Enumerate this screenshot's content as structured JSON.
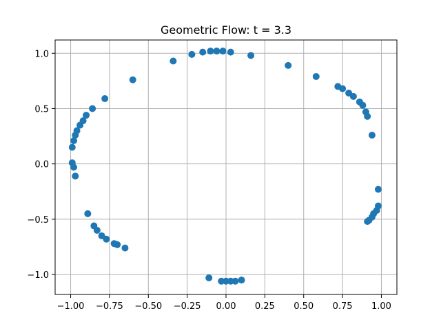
{
  "chart_data": {
    "type": "scatter",
    "title": "Geometric Flow: t = 3.3",
    "xlabel": "",
    "ylabel": "",
    "xlim": [
      -1.1,
      1.1
    ],
    "ylim": [
      -1.18,
      1.12
    ],
    "x_ticks": [
      -1.0,
      -0.75,
      -0.5,
      -0.25,
      0.0,
      0.25,
      0.5,
      0.75,
      1.0
    ],
    "x_tick_labels": [
      "−1.00",
      "−0.75",
      "−0.50",
      "−0.25",
      "0.00",
      "0.25",
      "0.50",
      "0.75",
      "1.00"
    ],
    "y_ticks": [
      -1.0,
      -0.5,
      0.0,
      0.5,
      1.0
    ],
    "y_tick_labels": [
      "−1.0",
      "−0.5",
      "0.0",
      "0.5",
      "1.0"
    ],
    "grid": true,
    "marker_color": "#1f77b4",
    "marker": "circle",
    "series": [
      {
        "points": [
          [
            -0.22,
            0.99
          ],
          [
            -0.15,
            1.01
          ],
          [
            -0.1,
            1.02
          ],
          [
            -0.06,
            1.02
          ],
          [
            -0.02,
            1.02
          ],
          [
            0.03,
            1.01
          ],
          [
            0.16,
            0.98
          ],
          [
            0.4,
            0.89
          ],
          [
            0.58,
            0.79
          ],
          [
            0.72,
            0.7
          ],
          [
            0.75,
            0.68
          ],
          [
            0.79,
            0.64
          ],
          [
            0.82,
            0.61
          ],
          [
            0.86,
            0.56
          ],
          [
            0.88,
            0.53
          ],
          [
            0.9,
            0.47
          ],
          [
            0.91,
            0.43
          ],
          [
            0.94,
            0.26
          ],
          [
            0.98,
            -0.23
          ],
          [
            0.98,
            -0.38
          ],
          [
            0.97,
            -0.42
          ],
          [
            0.95,
            -0.45
          ],
          [
            0.94,
            -0.48
          ],
          [
            0.92,
            -0.51
          ],
          [
            0.91,
            -0.52
          ],
          [
            0.1,
            -1.05
          ],
          [
            0.06,
            -1.06
          ],
          [
            0.03,
            -1.06
          ],
          [
            0.0,
            -1.06
          ],
          [
            -0.03,
            -1.06
          ],
          [
            -0.11,
            -1.03
          ],
          [
            -0.65,
            -0.76
          ],
          [
            -0.7,
            -0.73
          ],
          [
            -0.72,
            -0.72
          ],
          [
            -0.77,
            -0.68
          ],
          [
            -0.8,
            -0.65
          ],
          [
            -0.83,
            -0.6
          ],
          [
            -0.85,
            -0.56
          ],
          [
            -0.89,
            -0.45
          ],
          [
            -0.97,
            -0.11
          ],
          [
            -0.98,
            -0.03
          ],
          [
            -0.99,
            0.01
          ],
          [
            -0.99,
            0.15
          ],
          [
            -0.98,
            0.21
          ],
          [
            -0.97,
            0.26
          ],
          [
            -0.96,
            0.3
          ],
          [
            -0.94,
            0.35
          ],
          [
            -0.92,
            0.39
          ],
          [
            -0.9,
            0.44
          ],
          [
            -0.86,
            0.5
          ],
          [
            -0.78,
            0.59
          ],
          [
            -0.6,
            0.76
          ],
          [
            -0.34,
            0.93
          ]
        ]
      }
    ]
  }
}
